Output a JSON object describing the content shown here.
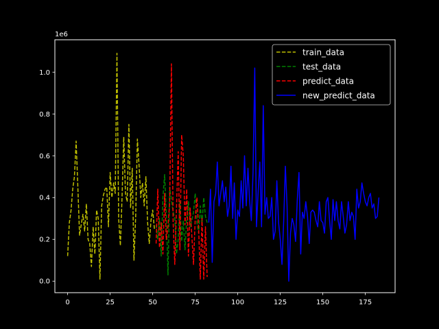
{
  "chart_data": {
    "type": "line",
    "title": "",
    "xlabel": "",
    "ylabel": "",
    "y_scale_label": "1e6",
    "xlim": [
      -7.5,
      192.5
    ],
    "ylim": [
      -55000,
      1155000
    ],
    "grid": false,
    "legend_position": "top-right",
    "x_ticks": [
      0,
      25,
      50,
      75,
      100,
      125,
      150,
      175
    ],
    "x_tick_labels": [
      "0",
      "25",
      "50",
      "75",
      "100",
      "125",
      "150",
      "175"
    ],
    "y_ticks": [
      0,
      200000,
      400000,
      600000,
      800000,
      1000000
    ],
    "y_tick_labels": [
      "0.0",
      "0.2",
      "0.4",
      "0.6",
      "0.8",
      "1.0"
    ],
    "series": [
      {
        "name": "train_data",
        "color": "#bfbf00",
        "style": "dashed",
        "x": [
          0,
          1,
          2,
          3,
          4,
          5,
          6,
          7,
          8,
          9,
          10,
          11,
          12,
          13,
          14,
          15,
          16,
          17,
          18,
          19,
          20,
          21,
          22,
          23,
          24,
          25,
          26,
          27,
          28,
          29,
          30,
          31,
          32,
          33,
          34,
          35,
          36,
          37,
          38,
          39,
          40,
          41,
          42,
          43,
          44,
          45,
          46,
          47,
          48,
          49,
          50,
          51
        ],
        "y": [
          120000,
          280000,
          340000,
          440000,
          500000,
          670000,
          450000,
          220000,
          270000,
          320000,
          240000,
          370000,
          200000,
          180000,
          70000,
          260000,
          130000,
          340000,
          300000,
          10000,
          360000,
          410000,
          440000,
          450000,
          260000,
          520000,
          400000,
          470000,
          420000,
          1090000,
          300000,
          170000,
          410000,
          690000,
          420000,
          380000,
          750000,
          350000,
          540000,
          100000,
          310000,
          680000,
          550000,
          400000,
          470000,
          360000,
          500000,
          280000,
          180000,
          290000,
          340000,
          250000
        ]
      },
      {
        "name": "test_data",
        "color": "#008000",
        "style": "dashed",
        "x": [
          52,
          53,
          54,
          55,
          56,
          57,
          58,
          59,
          60,
          61,
          62,
          63,
          64,
          65,
          66,
          67,
          68,
          69,
          70,
          71,
          72,
          73,
          74,
          75,
          76,
          77,
          78,
          79,
          80,
          81,
          82
        ],
        "y": [
          270000,
          200000,
          300000,
          120000,
          400000,
          510000,
          330000,
          30000,
          450000,
          390000,
          330000,
          300000,
          130000,
          200000,
          380000,
          190000,
          290000,
          150000,
          300000,
          380000,
          260000,
          290000,
          330000,
          420000,
          280000,
          230000,
          360000,
          270000,
          400000,
          310000,
          280000
        ]
      },
      {
        "name": "predict_data",
        "color": "#ff0000",
        "style": "dashed",
        "x": [
          52,
          53,
          54,
          55,
          56,
          57,
          58,
          59,
          60,
          61,
          62,
          63,
          64,
          65,
          66,
          67,
          68,
          69,
          70,
          71,
          72,
          73,
          74,
          75,
          76,
          77,
          78,
          79,
          80,
          81,
          82
        ],
        "y": [
          180000,
          440000,
          160000,
          280000,
          130000,
          420000,
          200000,
          260000,
          380000,
          1040000,
          280000,
          80000,
          350000,
          620000,
          150000,
          700000,
          600000,
          270000,
          440000,
          120000,
          350000,
          220000,
          80000,
          300000,
          400000,
          250000,
          10000,
          300000,
          10000,
          260000,
          20000
        ]
      },
      {
        "name": "new_predict_data",
        "color": "#0000ff",
        "style": "solid",
        "x": [
          83,
          84,
          85,
          86,
          87,
          88,
          89,
          90,
          91,
          92,
          93,
          94,
          95,
          96,
          97,
          98,
          99,
          100,
          101,
          102,
          103,
          104,
          105,
          106,
          107,
          108,
          109,
          110,
          111,
          112,
          113,
          114,
          115,
          116,
          117,
          118,
          119,
          120,
          121,
          122,
          123,
          124,
          125,
          126,
          127,
          128,
          129,
          130,
          131,
          132,
          133,
          134,
          135,
          136,
          137,
          138,
          139,
          140,
          141,
          142,
          143,
          144,
          145,
          146,
          147,
          148,
          149,
          150,
          151,
          152,
          153,
          154,
          155,
          156,
          157,
          158,
          159,
          160,
          161,
          162,
          163,
          164,
          165,
          166,
          167,
          168,
          169,
          170,
          171,
          172,
          173,
          174,
          175,
          176,
          177,
          178,
          179,
          180,
          181,
          182,
          183
        ],
        "y": [
          280000,
          440000,
          90000,
          380000,
          420000,
          570000,
          360000,
          420000,
          480000,
          380000,
          450000,
          310000,
          360000,
          550000,
          300000,
          470000,
          200000,
          340000,
          310000,
          480000,
          350000,
          600000,
          360000,
          540000,
          380000,
          290000,
          520000,
          1020000,
          260000,
          430000,
          570000,
          260000,
          840000,
          320000,
          400000,
          300000,
          310000,
          400000,
          200000,
          240000,
          480000,
          280000,
          200000,
          80000,
          290000,
          550000,
          360000,
          0,
          230000,
          300000,
          270000,
          190000,
          390000,
          520000,
          130000,
          330000,
          300000,
          380000,
          310000,
          180000,
          330000,
          340000,
          330000,
          290000,
          260000,
          380000,
          290000,
          280000,
          230000,
          380000,
          400000,
          290000,
          200000,
          390000,
          290000,
          380000,
          290000,
          250000,
          380000,
          310000,
          230000,
          270000,
          380000,
          290000,
          330000,
          310000,
          200000,
          440000,
          350000,
          380000,
          470000,
          420000,
          380000,
          360000,
          400000,
          420000,
          350000,
          370000,
          300000,
          310000,
          400000
        ]
      }
    ]
  }
}
